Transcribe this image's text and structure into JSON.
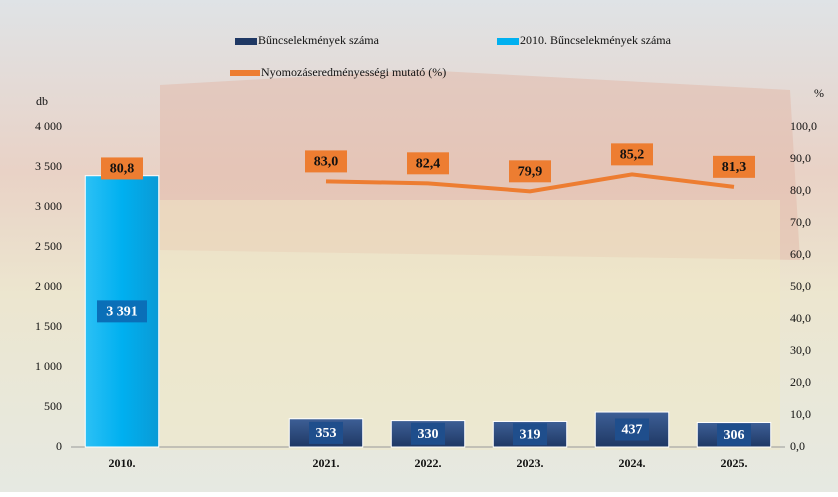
{
  "chart_data": {
    "type": "bar-line",
    "categories": [
      "2010.",
      null,
      "2021.",
      "2022.",
      "2023.",
      "2024.",
      "2025."
    ],
    "series": [
      {
        "name": "Bűncselekmények száma",
        "color": "#1f3864",
        "type": "bar",
        "values": [
          null,
          null,
          353,
          330,
          319,
          437,
          306
        ]
      },
      {
        "name": "2010. Bűncselekmények száma",
        "color": "#00b0f0",
        "type": "bar",
        "values": [
          3391,
          null,
          null,
          null,
          null,
          null,
          null
        ],
        "value_labels": [
          "3 391",
          null,
          null,
          null,
          null,
          null,
          null
        ]
      },
      {
        "name": "Nyomozáseredményességi mutató (%)",
        "color": "#ed7d31",
        "type": "line",
        "axis": "y2",
        "values": [
          80.8,
          null,
          83.0,
          82.4,
          79.9,
          85.2,
          81.3
        ],
        "value_labels": [
          "80,8",
          null,
          "83,0",
          "82,4",
          "79,9",
          "85,2",
          "81,3"
        ]
      }
    ],
    "y_label": "db",
    "y2_label": "%",
    "ylim": [
      0,
      4000
    ],
    "yticks": [
      0,
      500,
      {
        "value": 1000,
        "label": "1 000"
      },
      {
        "value": 1500,
        "label": "1 500"
      },
      {
        "value": 2000,
        "label": "2 000"
      },
      {
        "value": 2500,
        "label": "2 500"
      },
      {
        "value": 3000,
        "label": "3 000"
      },
      {
        "value": 3500,
        "label": "3 500"
      },
      {
        "value": 4000,
        "label": "4 000"
      }
    ],
    "y2lim": [
      0,
      100
    ],
    "y2ticks": [
      {
        "value": 0,
        "label": "0,0"
      },
      {
        "value": 10,
        "label": "10,0"
      },
      {
        "value": 20,
        "label": "20,0"
      },
      {
        "value": 30,
        "label": "30,0"
      },
      {
        "value": 40,
        "label": "40,0"
      },
      {
        "value": 50,
        "label": "50,0"
      },
      {
        "value": 60,
        "label": "60,0"
      },
      {
        "value": 70,
        "label": "70,0"
      },
      {
        "value": 80,
        "label": "80,0"
      },
      {
        "value": 90,
        "label": "90,0"
      },
      {
        "value": 100,
        "label": "100,0"
      }
    ]
  }
}
